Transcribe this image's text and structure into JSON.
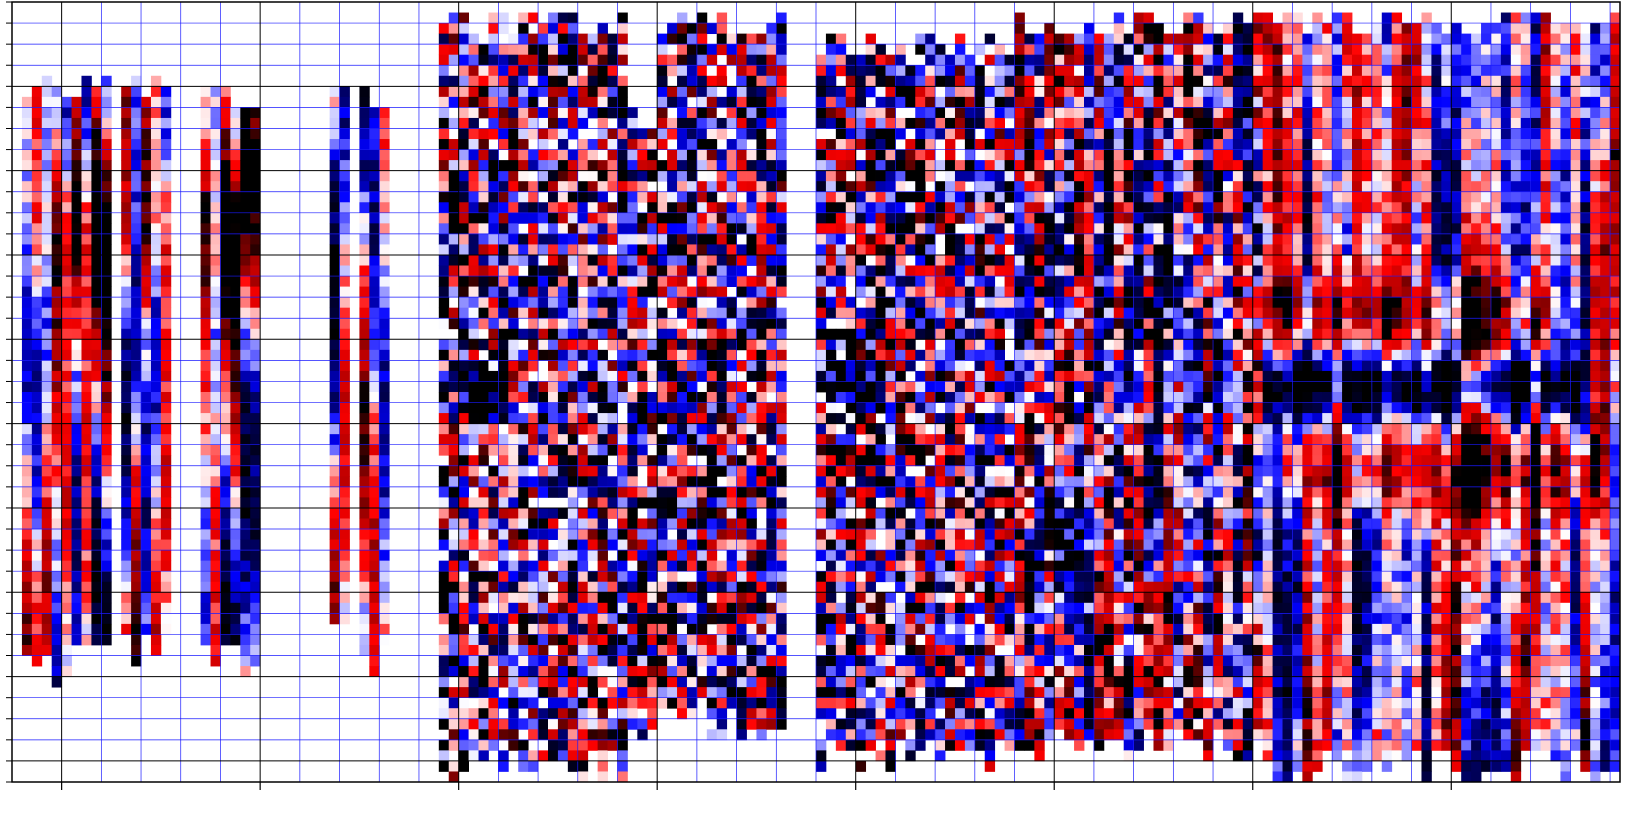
{
  "chart_data": {
    "type": "heatmap",
    "title": "",
    "xlabel": "",
    "ylabel": "",
    "x_tick_labels": [],
    "y_tick_labels": [],
    "grid": true,
    "colormap": {
      "name": "seismic",
      "stops": [
        [
          0.0,
          "#000000"
        ],
        [
          0.15,
          "#00004c"
        ],
        [
          0.3,
          "#0000ff"
        ],
        [
          0.5,
          "#ffffff"
        ],
        [
          0.7,
          "#ff0000"
        ],
        [
          0.85,
          "#b00000"
        ],
        [
          1.0,
          "#000000"
        ]
      ],
      "vmin": -1,
      "vmax": 1
    },
    "colors": {
      "frame": "#000000",
      "grid_major": "#000000",
      "grid_minor": "#1a1aff",
      "background": "#ffffff"
    },
    "n_columns": 162,
    "n_rows": 74,
    "column_blocks": [
      {
        "col_start": 1,
        "col_end": 6,
        "row_start": 7,
        "row_end": 65,
        "pattern": "smooth"
      },
      {
        "col_start": 6,
        "col_end": 10,
        "row_start": 7,
        "row_end": 64,
        "pattern": "smooth"
      },
      {
        "col_start": 11,
        "col_end": 16,
        "row_start": 7,
        "row_end": 63,
        "pattern": "smooth"
      },
      {
        "col_start": 19,
        "col_end": 25,
        "row_start": 8,
        "row_end": 64,
        "pattern": "smooth"
      },
      {
        "col_start": 32,
        "col_end": 34,
        "row_start": 7,
        "row_end": 61,
        "pattern": "smooth"
      },
      {
        "col_start": 35,
        "col_end": 38,
        "row_start": 8,
        "row_end": 64,
        "pattern": "smooth"
      },
      {
        "col_start": 43,
        "col_end": 62,
        "row_start": 1,
        "row_end": 74,
        "pattern": "noisy"
      },
      {
        "col_start": 62,
        "col_end": 65,
        "row_start": 10,
        "row_end": 72,
        "pattern": "noisy"
      },
      {
        "col_start": 65,
        "col_end": 78,
        "row_start": 1,
        "row_end": 70,
        "pattern": "noisy"
      },
      {
        "col_start": 81,
        "col_end": 101,
        "row_start": 3,
        "row_end": 73,
        "pattern": "noisy"
      },
      {
        "col_start": 101,
        "col_end": 126,
        "row_start": 1,
        "row_end": 72,
        "pattern": "mixed"
      },
      {
        "col_start": 126,
        "col_end": 162,
        "row_start": 1,
        "row_end": 74,
        "pattern": "smooth-dense"
      }
    ],
    "features": [
      {
        "type": "band",
        "row_center": 36,
        "width_rows": 4,
        "sign": -1,
        "col_start": 43,
        "col_end": 50,
        "strength": 1.1
      },
      {
        "type": "band",
        "row_center": 36,
        "width_rows": 4,
        "sign": -1,
        "col_start": 81,
        "col_end": 88,
        "strength": 1.1
      },
      {
        "type": "band",
        "row_center": 36,
        "width_rows": 4,
        "sign": -1,
        "col_start": 126,
        "col_end": 158,
        "strength": 0.9
      },
      {
        "type": "band",
        "row_center": 29,
        "width_rows": 5,
        "sign": 1,
        "col_start": 126,
        "col_end": 155,
        "strength": 0.7
      },
      {
        "type": "band",
        "row_center": 44,
        "width_rows": 6,
        "sign": 1,
        "col_start": 128,
        "col_end": 160,
        "strength": 0.7
      },
      {
        "type": "band",
        "row_center": 21,
        "width_rows": 12,
        "sign": 1,
        "col_start": 1,
        "col_end": 25,
        "strength": 0.55
      }
    ]
  }
}
